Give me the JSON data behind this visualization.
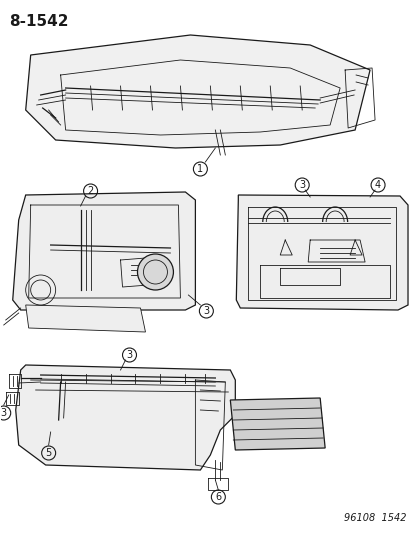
{
  "title_label": "8-1542",
  "footer_label": "96108  1542",
  "bg_color": "#ffffff",
  "line_color": "#1a1a1a",
  "title_fontsize": 11,
  "footer_fontsize": 7,
  "callout_fontsize": 7,
  "fig_width": 4.14,
  "fig_height": 5.33,
  "dpi": 100
}
